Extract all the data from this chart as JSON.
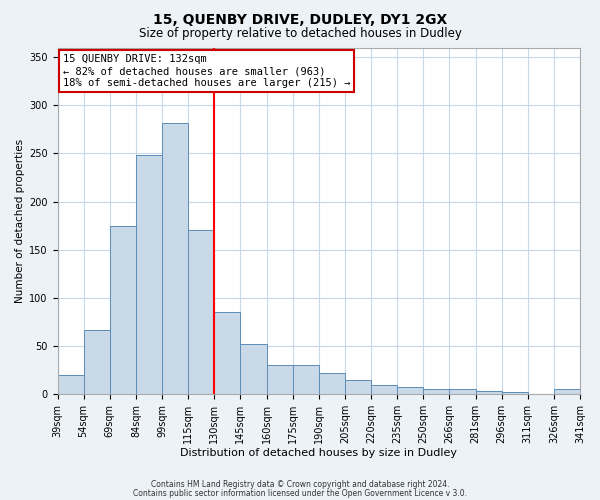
{
  "title": "15, QUENBY DRIVE, DUDLEY, DY1 2GX",
  "subtitle": "Size of property relative to detached houses in Dudley",
  "xlabel": "Distribution of detached houses by size in Dudley",
  "ylabel": "Number of detached properties",
  "bar_labels": [
    "39sqm",
    "54sqm",
    "69sqm",
    "84sqm",
    "99sqm",
    "115sqm",
    "130sqm",
    "145sqm",
    "160sqm",
    "175sqm",
    "190sqm",
    "205sqm",
    "220sqm",
    "235sqm",
    "250sqm",
    "266sqm",
    "281sqm",
    "296sqm",
    "311sqm",
    "326sqm",
    "341sqm"
  ],
  "bar_values": [
    20,
    67,
    175,
    248,
    282,
    170,
    85,
    52,
    30,
    30,
    22,
    15,
    10,
    8,
    5,
    5,
    3,
    2,
    0,
    5
  ],
  "bar_color": "#c9d9e8",
  "bar_edge_color": "#5b8db8",
  "vline_x": 6,
  "vline_color": "red",
  "ylim": [
    0,
    360
  ],
  "yticks": [
    0,
    50,
    100,
    150,
    200,
    250,
    300,
    350
  ],
  "annotation_title": "15 QUENBY DRIVE: 132sqm",
  "annotation_line1": "← 82% of detached houses are smaller (963)",
  "annotation_line2": "18% of semi-detached houses are larger (215) →",
  "annotation_box_color": "#ffffff",
  "annotation_box_edge": "#cc0000",
  "footer1": "Contains HM Land Registry data © Crown copyright and database right 2024.",
  "footer2": "Contains public sector information licensed under the Open Government Licence v 3.0.",
  "bg_color": "#edf2f7",
  "plot_bg_color": "#ffffff",
  "grid_color": "#c8d8e8",
  "title_fontsize": 10,
  "subtitle_fontsize": 8.5,
  "xlabel_fontsize": 8,
  "ylabel_fontsize": 7.5,
  "tick_fontsize": 7,
  "annotation_fontsize": 7.5,
  "footer_fontsize": 5.5
}
